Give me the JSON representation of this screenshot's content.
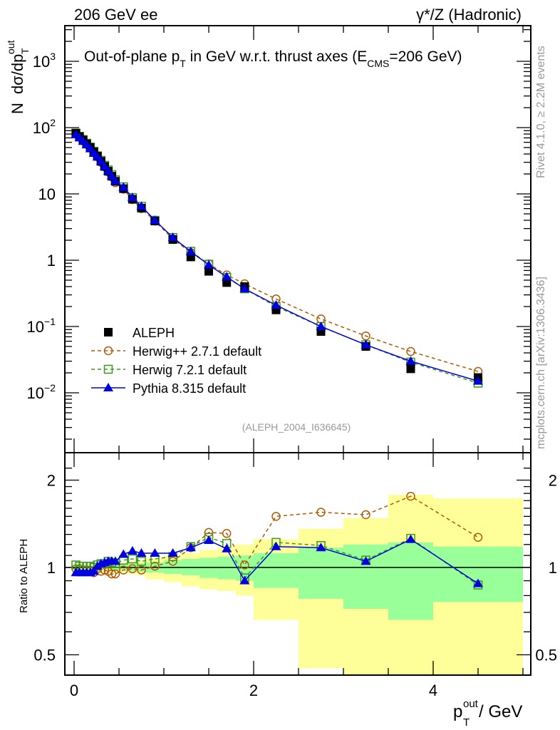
{
  "header": {
    "left": "206 GeV ee",
    "right": "γ*/Z (Hadronic)"
  },
  "side_labels": {
    "rivet": "Rivet 4.1.0, ≥ 2.2M events",
    "mcplots": "mcplots.cern.ch [arXiv:1306.3436]"
  },
  "chart_data": [
    {
      "type": "scatter",
      "panel": "main",
      "title": "Out-of-plane p_T in GeV w.r.t. thrust axes (E_CMS=206 GeV)",
      "title_parts": {
        "a": "Out-of-plane p",
        "a_sub": "T",
        "b": " in GeV w.r.t. thrust axes (E",
        "b_sub": "CMS",
        "c": "=206 GeV)"
      },
      "ylabel": "N  dσ/dp_T^out",
      "yscale": "log",
      "ylim": [
        0.0018,
        3500
      ],
      "xlim": [
        -0.1,
        5.1
      ],
      "ytick_labels": [
        {
          "v": 1000,
          "base": "10",
          "exp": "3"
        },
        {
          "v": 100,
          "base": "10",
          "exp": "2"
        },
        {
          "v": 10,
          "base": "10",
          "exp": ""
        },
        {
          "v": 1,
          "base": "1",
          "exp": ""
        },
        {
          "v": 0.1,
          "base": "10",
          "exp": "−1"
        },
        {
          "v": 0.01,
          "base": "10",
          "exp": "−2"
        }
      ],
      "annotation": "(ALEPH_2004_I636645)",
      "legend_position": "lower-left",
      "x": [
        0.02,
        0.06,
        0.1,
        0.14,
        0.18,
        0.22,
        0.26,
        0.3,
        0.34,
        0.38,
        0.42,
        0.46,
        0.55,
        0.65,
        0.75,
        0.9,
        1.1,
        1.3,
        1.5,
        1.7,
        1.9,
        2.25,
        2.75,
        3.25,
        3.75,
        4.5
      ],
      "series": [
        {
          "name": "ALEPH",
          "style": "data",
          "color": "#000000",
          "values": [
            82,
            73,
            65,
            57,
            50,
            43,
            37,
            31,
            26,
            22,
            18.5,
            15.5,
            12,
            8.3,
            6.1,
            3.9,
            2.05,
            1.12,
            0.68,
            0.46,
            0.4,
            0.178,
            0.084,
            0.05,
            0.023,
            0.017
          ]
        },
        {
          "name": "Herwig++ 2.7.1 default",
          "style": "circle-dashed",
          "color": "#b35a00",
          "values": [
            80,
            72,
            63,
            56,
            49,
            42,
            36,
            30,
            25.5,
            21.5,
            18,
            14.8,
            11.8,
            8.2,
            6.0,
            3.9,
            2.1,
            1.3,
            0.88,
            0.6,
            0.44,
            0.26,
            0.13,
            0.072,
            0.042,
            0.021
          ]
        },
        {
          "name": "Herwig 7.2.1 default",
          "style": "square-dashed",
          "color": "#3a9a1c",
          "values": [
            83,
            74,
            66,
            58,
            51,
            44,
            37.5,
            32,
            27,
            23,
            19.5,
            16.3,
            12.8,
            8.8,
            6.5,
            4.0,
            2.2,
            1.36,
            0.87,
            0.55,
            0.37,
            0.2,
            0.1,
            0.053,
            0.029,
            0.014
          ]
        },
        {
          "name": "Pythia 8.315 default",
          "style": "triangle-solid",
          "color": "#0000e0",
          "values": [
            78,
            70,
            62,
            55,
            48,
            41,
            36,
            31,
            26,
            22,
            18.5,
            15.6,
            12.6,
            8.8,
            6.5,
            4.0,
            2.2,
            1.35,
            0.85,
            0.56,
            0.37,
            0.21,
            0.1,
            0.053,
            0.03,
            0.015
          ]
        }
      ]
    },
    {
      "type": "scatter",
      "panel": "ratio",
      "ylabel": "Ratio to ALEPH",
      "xlabel": "p_T^out / GeV",
      "xlabel_parts": {
        "a": "p",
        "sup": "out",
        "sub": "T",
        "b": " / GeV"
      },
      "yscale": "log",
      "ylim": [
        0.42,
        2.4
      ],
      "ytick_labels": [
        {
          "v": 2,
          "label": "2"
        },
        {
          "v": 1,
          "label": "1"
        },
        {
          "v": 0.5,
          "label": "0.5"
        }
      ],
      "xticks": [
        0,
        2,
        4
      ],
      "bin_edges": [
        0,
        0.04,
        0.08,
        0.12,
        0.16,
        0.2,
        0.24,
        0.28,
        0.32,
        0.36,
        0.4,
        0.44,
        0.48,
        0.6,
        0.7,
        0.8,
        1.0,
        1.2,
        1.4,
        1.6,
        1.8,
        2.0,
        2.5,
        3.0,
        3.5,
        4.0,
        5.0
      ],
      "stat_band": [
        [
          0.99,
          1.01
        ],
        [
          0.99,
          1.01
        ],
        [
          0.99,
          1.01
        ],
        [
          0.99,
          1.01
        ],
        [
          0.99,
          1.01
        ],
        [
          0.99,
          1.01
        ],
        [
          0.99,
          1.01
        ],
        [
          0.985,
          1.015
        ],
        [
          0.985,
          1.015
        ],
        [
          0.985,
          1.015
        ],
        [
          0.98,
          1.02
        ],
        [
          0.98,
          1.02
        ],
        [
          0.975,
          1.025
        ],
        [
          0.97,
          1.03
        ],
        [
          0.965,
          1.035
        ],
        [
          0.96,
          1.04
        ],
        [
          0.95,
          1.06
        ],
        [
          0.94,
          1.07
        ],
        [
          0.92,
          1.08
        ],
        [
          0.91,
          1.09
        ],
        [
          0.9,
          1.1
        ],
        [
          0.85,
          1.12
        ],
        [
          0.78,
          1.17
        ],
        [
          0.72,
          1.2
        ],
        [
          0.66,
          1.22
        ],
        [
          0.76,
          1.18
        ]
      ],
      "total_band": [
        [
          0.97,
          1.02
        ],
        [
          0.97,
          1.02
        ],
        [
          0.97,
          1.02
        ],
        [
          0.97,
          1.02
        ],
        [
          0.97,
          1.02
        ],
        [
          0.97,
          1.02
        ],
        [
          0.97,
          1.02
        ],
        [
          0.965,
          1.03
        ],
        [
          0.965,
          1.03
        ],
        [
          0.965,
          1.03
        ],
        [
          0.96,
          1.03
        ],
        [
          0.96,
          1.03
        ],
        [
          0.96,
          1.04
        ],
        [
          0.95,
          1.05
        ],
        [
          0.94,
          1.06
        ],
        [
          0.91,
          1.08
        ],
        [
          0.89,
          1.1
        ],
        [
          0.86,
          1.12
        ],
        [
          0.84,
          1.15
        ],
        [
          0.83,
          1.18
        ],
        [
          0.8,
          1.2
        ],
        [
          0.66,
          1.25
        ],
        [
          0.45,
          1.36
        ],
        [
          0.33,
          1.48
        ],
        [
          0.33,
          1.78
        ],
        [
          0.33,
          1.73
        ]
      ],
      "x": [
        0.02,
        0.06,
        0.1,
        0.14,
        0.18,
        0.22,
        0.26,
        0.3,
        0.34,
        0.38,
        0.42,
        0.46,
        0.55,
        0.65,
        0.75,
        0.9,
        1.1,
        1.3,
        1.5,
        1.7,
        1.9,
        2.25,
        2.75,
        3.25,
        3.75,
        4.5
      ],
      "series": [
        {
          "name": "Herwig++ 2.7.1 default",
          "color": "#b35a00",
          "style": "circle-dashed",
          "values": [
            0.99,
            0.99,
            0.98,
            0.98,
            0.97,
            0.96,
            0.99,
            0.97,
            0.98,
            0.97,
            0.95,
            0.95,
            0.98,
            0.99,
            0.98,
            1.01,
            1.05,
            1.17,
            1.32,
            1.31,
            1.02,
            1.5,
            1.55,
            1.52,
            1.76,
            1.27
          ]
        },
        {
          "name": "Herwig 7.2.1 default",
          "color": "#3a9a1c",
          "style": "square-dashed",
          "values": [
            1.02,
            1.01,
            1.01,
            1.01,
            1.01,
            1.0,
            1.02,
            1.03,
            1.03,
            1.05,
            1.04,
            1.03,
            1.06,
            1.07,
            1.05,
            1.07,
            1.09,
            1.18,
            1.27,
            1.21,
            0.92,
            1.22,
            1.19,
            1.06,
            1.26,
            0.87
          ]
        },
        {
          "name": "Pythia 8.315 default",
          "color": "#0000e0",
          "style": "triangle-solid",
          "values": [
            0.96,
            0.96,
            0.96,
            0.96,
            0.96,
            0.97,
            1.01,
            1.03,
            1.04,
            1.05,
            1.05,
            1.05,
            1.11,
            1.14,
            1.12,
            1.12,
            1.12,
            1.17,
            1.24,
            1.16,
            0.9,
            1.18,
            1.17,
            1.05,
            1.25,
            0.88
          ]
        }
      ]
    }
  ]
}
